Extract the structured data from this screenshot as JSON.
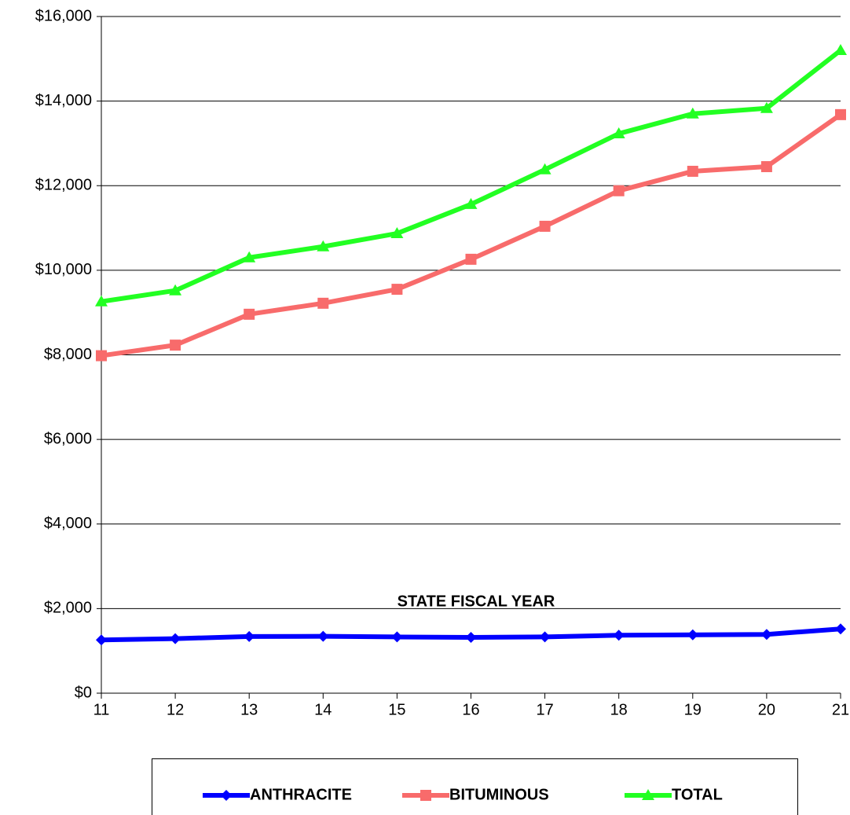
{
  "chart_data": {
    "type": "line",
    "x_label": "STATE FISCAL YEAR",
    "categories": [
      "11",
      "12",
      "13",
      "14",
      "15",
      "16",
      "17",
      "18",
      "19",
      "20",
      "21"
    ],
    "series": [
      {
        "name": "ANTHRACITE",
        "color": "#0000ff",
        "marker": "diamond",
        "values": [
          1260,
          1290,
          1340,
          1345,
          1330,
          1320,
          1330,
          1370,
          1380,
          1390,
          1520
        ]
      },
      {
        "name": "BITUMINOUS",
        "color": "#f86b6b",
        "marker": "square",
        "values": [
          7980,
          8230,
          8960,
          9220,
          9550,
          10260,
          11040,
          11880,
          12340,
          12450,
          13680
        ]
      },
      {
        "name": "TOTAL",
        "color": "#22ff22",
        "marker": "triangle",
        "values": [
          9260,
          9520,
          10300,
          10560,
          10870,
          11560,
          12380,
          13230,
          13700,
          13830,
          15200
        ]
      }
    ],
    "ylim": [
      0,
      16000
    ],
    "yticks": [
      {
        "value": 0,
        "label": "$0"
      },
      {
        "value": 2000,
        "label": "$2,000"
      },
      {
        "value": 4000,
        "label": "$4,000"
      },
      {
        "value": 6000,
        "label": "$6,000"
      },
      {
        "value": 8000,
        "label": "$8,000"
      },
      {
        "value": 10000,
        "label": "$10,000"
      },
      {
        "value": 12000,
        "label": "$12,000"
      },
      {
        "value": 14000,
        "label": "$14,000"
      },
      {
        "value": 16000,
        "label": "$16,000"
      }
    ],
    "grid": true,
    "legend": "bottom"
  }
}
